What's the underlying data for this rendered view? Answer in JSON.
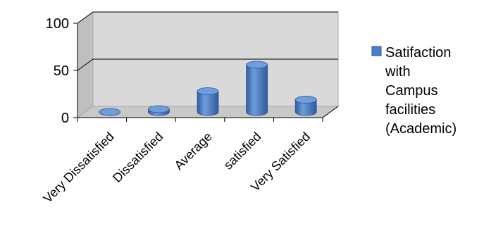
{
  "chart_data": {
    "type": "bar",
    "title": "",
    "xlabel": "",
    "ylabel": "",
    "categories": [
      "Very Dissatisfied",
      "Dissatisfied",
      "Average",
      "satisfied",
      "Very Satisfied"
    ],
    "series": [
      {
        "name": "Satifaction with Campus facilities (Academic)",
        "values": [
          0,
          3,
          22,
          50,
          13
        ]
      }
    ],
    "yticks": [
      "0",
      "50",
      "100"
    ],
    "ylim": [
      0,
      100
    ],
    "grid": true,
    "style": "3d-cylinder",
    "legend_position": "right",
    "colors": {
      "bar_fill": "#4a7fc9",
      "bar_dark": "#2e5c9c",
      "bar_top": "#6f9ddb",
      "wall": "#d9d9d9",
      "floor": "#c8c8c8",
      "grid": "#000000"
    },
    "legend": {
      "lines": [
        "Satifaction",
        "with",
        "Campus",
        "facilities",
        "(Academic)"
      ]
    }
  }
}
